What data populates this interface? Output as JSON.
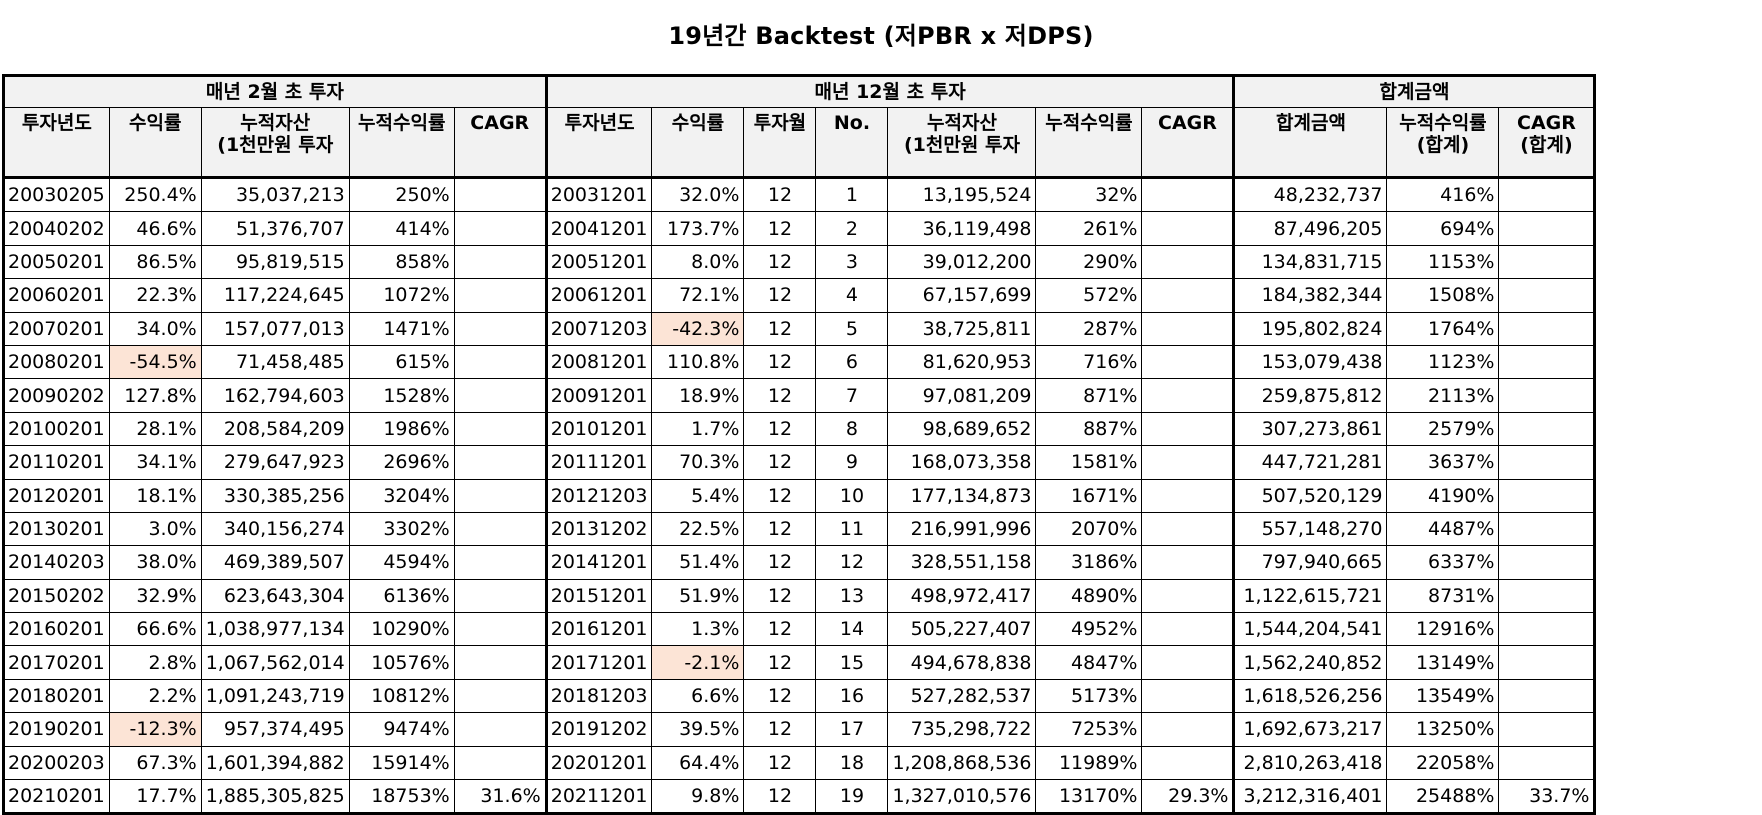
{
  "title": "19년간 Backtest (저PBR x 저DPS)",
  "groups": {
    "feb": "매년 2월 초 투자",
    "dec": "매년 12월 초 투자",
    "total": "합계금액"
  },
  "headers": {
    "feb": [
      "투자년도",
      "수익률",
      "누적자산\n(1천만원 투자",
      "누적수익률",
      "CAGR"
    ],
    "dec": [
      "투자년도",
      "수익률",
      "투자월",
      "No.",
      "누적자산\n(1천만원 투자",
      "누적수익률",
      "CAGR"
    ],
    "total": [
      "합계금액",
      "누적수익률\n(합계)",
      "CAGR\n(합계)"
    ]
  },
  "rows": [
    [
      "20030205",
      "250.4%",
      "35,037,213",
      "250%",
      "",
      "20031201",
      "32.0%",
      "12",
      "1",
      "13,195,524",
      "32%",
      "",
      "48,232,737",
      "416%",
      ""
    ],
    [
      "20040202",
      "46.6%",
      "51,376,707",
      "414%",
      "",
      "20041201",
      "173.7%",
      "12",
      "2",
      "36,119,498",
      "261%",
      "",
      "87,496,205",
      "694%",
      ""
    ],
    [
      "20050201",
      "86.5%",
      "95,819,515",
      "858%",
      "",
      "20051201",
      "8.0%",
      "12",
      "3",
      "39,012,200",
      "290%",
      "",
      "134,831,715",
      "1153%",
      ""
    ],
    [
      "20060201",
      "22.3%",
      "117,224,645",
      "1072%",
      "",
      "20061201",
      "72.1%",
      "12",
      "4",
      "67,157,699",
      "572%",
      "",
      "184,382,344",
      "1508%",
      ""
    ],
    [
      "20070201",
      "34.0%",
      "157,077,013",
      "1471%",
      "",
      "20071203",
      "-42.3%",
      "12",
      "5",
      "38,725,811",
      "287%",
      "",
      "195,802,824",
      "1764%",
      ""
    ],
    [
      "20080201",
      "-54.5%",
      "71,458,485",
      "615%",
      "",
      "20081201",
      "110.8%",
      "12",
      "6",
      "81,620,953",
      "716%",
      "",
      "153,079,438",
      "1123%",
      ""
    ],
    [
      "20090202",
      "127.8%",
      "162,794,603",
      "1528%",
      "",
      "20091201",
      "18.9%",
      "12",
      "7",
      "97,081,209",
      "871%",
      "",
      "259,875,812",
      "2113%",
      ""
    ],
    [
      "20100201",
      "28.1%",
      "208,584,209",
      "1986%",
      "",
      "20101201",
      "1.7%",
      "12",
      "8",
      "98,689,652",
      "887%",
      "",
      "307,273,861",
      "2579%",
      ""
    ],
    [
      "20110201",
      "34.1%",
      "279,647,923",
      "2696%",
      "",
      "20111201",
      "70.3%",
      "12",
      "9",
      "168,073,358",
      "1581%",
      "",
      "447,721,281",
      "3637%",
      ""
    ],
    [
      "20120201",
      "18.1%",
      "330,385,256",
      "3204%",
      "",
      "20121203",
      "5.4%",
      "12",
      "10",
      "177,134,873",
      "1671%",
      "",
      "507,520,129",
      "4190%",
      ""
    ],
    [
      "20130201",
      "3.0%",
      "340,156,274",
      "3302%",
      "",
      "20131202",
      "22.5%",
      "12",
      "11",
      "216,991,996",
      "2070%",
      "",
      "557,148,270",
      "4487%",
      ""
    ],
    [
      "20140203",
      "38.0%",
      "469,389,507",
      "4594%",
      "",
      "20141201",
      "51.4%",
      "12",
      "12",
      "328,551,158",
      "3186%",
      "",
      "797,940,665",
      "6337%",
      ""
    ],
    [
      "20150202",
      "32.9%",
      "623,643,304",
      "6136%",
      "",
      "20151201",
      "51.9%",
      "12",
      "13",
      "498,972,417",
      "4890%",
      "",
      "1,122,615,721",
      "8731%",
      ""
    ],
    [
      "20160201",
      "66.6%",
      "1,038,977,134",
      "10290%",
      "",
      "20161201",
      "1.3%",
      "12",
      "14",
      "505,227,407",
      "4952%",
      "",
      "1,544,204,541",
      "12916%",
      ""
    ],
    [
      "20170201",
      "2.8%",
      "1,067,562,014",
      "10576%",
      "",
      "20171201",
      "-2.1%",
      "12",
      "15",
      "494,678,838",
      "4847%",
      "",
      "1,562,240,852",
      "13149%",
      ""
    ],
    [
      "20180201",
      "2.2%",
      "1,091,243,719",
      "10812%",
      "",
      "20181203",
      "6.6%",
      "12",
      "16",
      "527,282,537",
      "5173%",
      "",
      "1,618,526,256",
      "13549%",
      ""
    ],
    [
      "20190201",
      "-12.3%",
      "957,374,495",
      "9474%",
      "",
      "20191202",
      "39.5%",
      "12",
      "17",
      "735,298,722",
      "7253%",
      "",
      "1,692,673,217",
      "13250%",
      ""
    ],
    [
      "20200203",
      "67.3%",
      "1,601,394,882",
      "15914%",
      "",
      "20201201",
      "64.4%",
      "12",
      "18",
      "1,208,868,536",
      "11989%",
      "",
      "2,810,263,418",
      "22058%",
      ""
    ],
    [
      "20210201",
      "17.7%",
      "1,885,305,825",
      "18753%",
      "31.6%",
      "20211201",
      "9.8%",
      "12",
      "19",
      "1,327,010,576",
      "13170%",
      "29.3%",
      "3,212,316,401",
      "25488%",
      "33.7%"
    ]
  ],
  "colors": {
    "header_bg": "#f2f2f2",
    "negative_highlight": "#fce4d6"
  }
}
